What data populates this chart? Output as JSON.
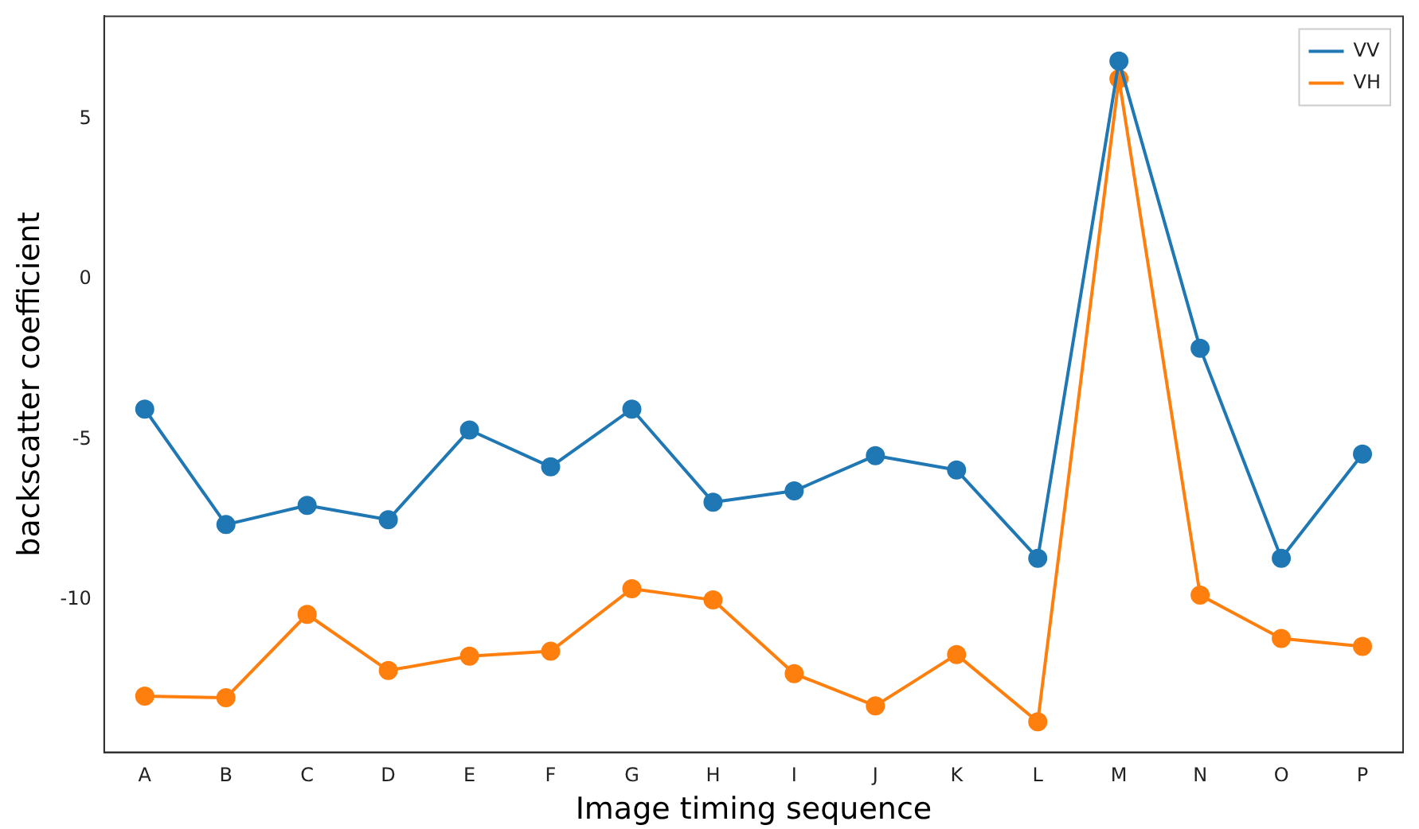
{
  "chart_data": {
    "type": "line",
    "xlabel": "Image timing sequence",
    "ylabel": "backscatter coefficient",
    "categories": [
      "A",
      "B",
      "C",
      "D",
      "E",
      "F",
      "G",
      "H",
      "I",
      "J",
      "K",
      "L",
      "M",
      "N",
      "O",
      "P"
    ],
    "series": [
      {
        "name": "VV",
        "color": "#1f77b4",
        "values": [
          -4.05,
          -7.65,
          -7.05,
          -7.5,
          -4.7,
          -5.85,
          -4.05,
          -6.95,
          -6.6,
          -5.5,
          -5.95,
          -8.7,
          6.8,
          -2.15,
          -8.7,
          -5.45
        ]
      },
      {
        "name": "VH",
        "color": "#ff7f0e",
        "values": [
          -13,
          -13.05,
          -10.45,
          -12.2,
          -11.75,
          -11.6,
          -9.65,
          -10,
          -12.3,
          -13.3,
          -11.7,
          -13.8,
          6.25,
          -9.85,
          -11.2,
          -11.45
        ]
      }
    ],
    "ylim": [
      -14.75,
      8.2
    ],
    "yticks": [
      -10,
      -5,
      0,
      5
    ],
    "grid": false,
    "legend": "top right",
    "marker": "circle",
    "line_style": "solid"
  }
}
